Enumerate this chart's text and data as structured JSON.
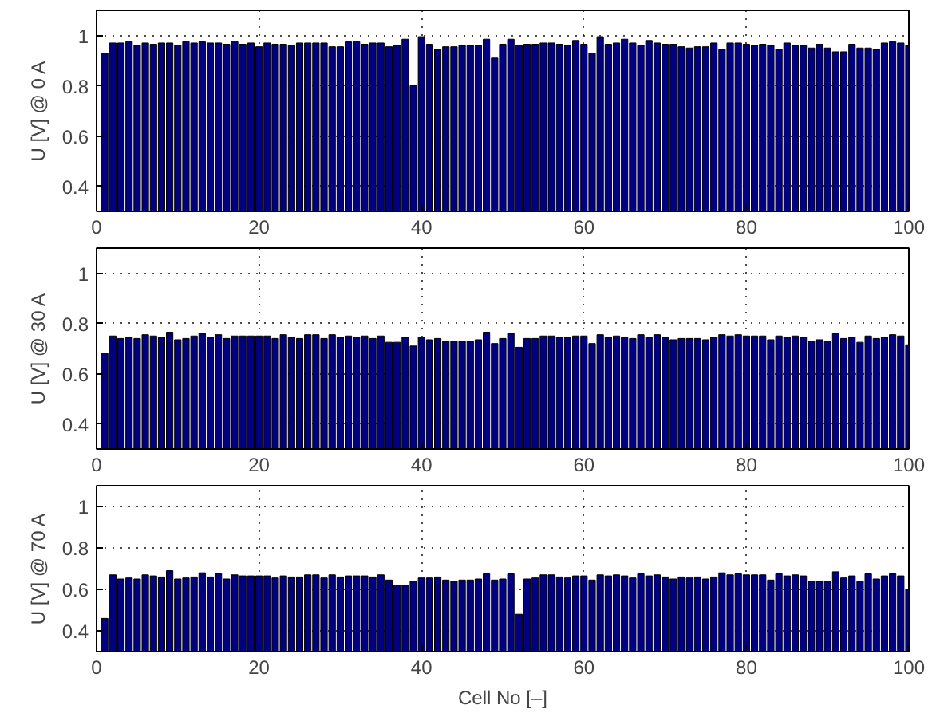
{
  "chart_data": [
    {
      "type": "bar",
      "ylabel": "U [V] @ 0 A",
      "color": "#000080",
      "xlim": [
        0,
        100
      ],
      "xticks": [
        0,
        20,
        40,
        60,
        80,
        100
      ],
      "ylim": [
        0.3,
        1.1
      ],
      "yticks": [
        0.4,
        0.6,
        0.8,
        1
      ],
      "grid": true,
      "x": [
        1,
        2,
        3,
        4,
        5,
        6,
        7,
        8,
        9,
        10,
        11,
        12,
        13,
        14,
        15,
        16,
        17,
        18,
        19,
        20,
        21,
        22,
        23,
        24,
        25,
        26,
        27,
        28,
        29,
        30,
        31,
        32,
        33,
        34,
        35,
        36,
        37,
        38,
        39,
        40,
        41,
        42,
        43,
        44,
        45,
        46,
        47,
        48,
        49,
        50,
        51,
        52,
        53,
        54,
        55,
        56,
        57,
        58,
        59,
        60,
        61,
        62,
        63,
        64,
        65,
        66,
        67,
        68,
        69,
        70,
        71,
        72,
        73,
        74,
        75,
        76,
        77,
        78,
        79,
        80,
        81,
        82,
        83,
        84,
        85,
        86,
        87,
        88,
        89,
        90,
        91,
        92,
        93,
        94,
        95,
        96,
        97,
        98,
        99,
        100
      ],
      "values": [
        0.93,
        0.97,
        0.97,
        0.975,
        0.96,
        0.97,
        0.965,
        0.97,
        0.97,
        0.96,
        0.975,
        0.97,
        0.975,
        0.97,
        0.97,
        0.965,
        0.975,
        0.965,
        0.97,
        0.955,
        0.97,
        0.965,
        0.965,
        0.96,
        0.97,
        0.97,
        0.97,
        0.97,
        0.955,
        0.955,
        0.975,
        0.975,
        0.965,
        0.97,
        0.97,
        0.955,
        0.96,
        0.985,
        0.8,
        0.995,
        0.965,
        0.945,
        0.955,
        0.955,
        0.96,
        0.96,
        0.96,
        0.985,
        0.91,
        0.965,
        0.985,
        0.96,
        0.965,
        0.965,
        0.97,
        0.97,
        0.965,
        0.96,
        0.98,
        0.965,
        0.93,
        0.995,
        0.965,
        0.97,
        0.985,
        0.97,
        0.96,
        0.98,
        0.97,
        0.965,
        0.965,
        0.955,
        0.95,
        0.955,
        0.955,
        0.97,
        0.945,
        0.97,
        0.97,
        0.965,
        0.96,
        0.965,
        0.96,
        0.945,
        0.97,
        0.96,
        0.96,
        0.95,
        0.965,
        0.95,
        0.935,
        0.935,
        0.965,
        0.95,
        0.95,
        0.945,
        0.97,
        0.975,
        0.97,
        0.96
      ]
    },
    {
      "type": "bar",
      "ylabel": "U [V] @ 30 A",
      "color": "#000080",
      "xlim": [
        0,
        100
      ],
      "xticks": [
        0,
        20,
        40,
        60,
        80,
        100
      ],
      "ylim": [
        0.3,
        1.1
      ],
      "yticks": [
        0.4,
        0.6,
        0.8,
        1
      ],
      "grid": true,
      "x": [
        1,
        2,
        3,
        4,
        5,
        6,
        7,
        8,
        9,
        10,
        11,
        12,
        13,
        14,
        15,
        16,
        17,
        18,
        19,
        20,
        21,
        22,
        23,
        24,
        25,
        26,
        27,
        28,
        29,
        30,
        31,
        32,
        33,
        34,
        35,
        36,
        37,
        38,
        39,
        40,
        41,
        42,
        43,
        44,
        45,
        46,
        47,
        48,
        49,
        50,
        51,
        52,
        53,
        54,
        55,
        56,
        57,
        58,
        59,
        60,
        61,
        62,
        63,
        64,
        65,
        66,
        67,
        68,
        69,
        70,
        71,
        72,
        73,
        74,
        75,
        76,
        77,
        78,
        79,
        80,
        81,
        82,
        83,
        84,
        85,
        86,
        87,
        88,
        89,
        90,
        91,
        92,
        93,
        94,
        95,
        96,
        97,
        98,
        99,
        100
      ],
      "values": [
        0.68,
        0.75,
        0.74,
        0.745,
        0.74,
        0.755,
        0.75,
        0.745,
        0.765,
        0.735,
        0.74,
        0.75,
        0.76,
        0.745,
        0.755,
        0.74,
        0.75,
        0.75,
        0.75,
        0.75,
        0.75,
        0.74,
        0.755,
        0.745,
        0.74,
        0.755,
        0.755,
        0.74,
        0.755,
        0.745,
        0.75,
        0.745,
        0.75,
        0.74,
        0.75,
        0.725,
        0.725,
        0.745,
        0.71,
        0.745,
        0.735,
        0.74,
        0.73,
        0.73,
        0.73,
        0.73,
        0.735,
        0.765,
        0.72,
        0.74,
        0.76,
        0.705,
        0.74,
        0.74,
        0.75,
        0.75,
        0.745,
        0.745,
        0.75,
        0.75,
        0.72,
        0.755,
        0.745,
        0.75,
        0.745,
        0.74,
        0.755,
        0.745,
        0.755,
        0.745,
        0.735,
        0.74,
        0.74,
        0.74,
        0.735,
        0.745,
        0.755,
        0.75,
        0.755,
        0.75,
        0.75,
        0.75,
        0.735,
        0.75,
        0.745,
        0.75,
        0.745,
        0.73,
        0.735,
        0.73,
        0.76,
        0.74,
        0.745,
        0.725,
        0.75,
        0.74,
        0.745,
        0.755,
        0.75,
        0.715
      ]
    },
    {
      "type": "bar",
      "xlabel": "Cell No [–]",
      "ylabel": "U [V] @ 70 A",
      "color": "#000080",
      "xlim": [
        0,
        100
      ],
      "xticks": [
        0,
        20,
        40,
        60,
        80,
        100
      ],
      "ylim": [
        0.3,
        1.1
      ],
      "yticks": [
        0.4,
        0.6,
        0.8,
        1
      ],
      "grid": true,
      "x": [
        1,
        2,
        3,
        4,
        5,
        6,
        7,
        8,
        9,
        10,
        11,
        12,
        13,
        14,
        15,
        16,
        17,
        18,
        19,
        20,
        21,
        22,
        23,
        24,
        25,
        26,
        27,
        28,
        29,
        30,
        31,
        32,
        33,
        34,
        35,
        36,
        37,
        38,
        39,
        40,
        41,
        42,
        43,
        44,
        45,
        46,
        47,
        48,
        49,
        50,
        51,
        52,
        53,
        54,
        55,
        56,
        57,
        58,
        59,
        60,
        61,
        62,
        63,
        64,
        65,
        66,
        67,
        68,
        69,
        70,
        71,
        72,
        73,
        74,
        75,
        76,
        77,
        78,
        79,
        80,
        81,
        82,
        83,
        84,
        85,
        86,
        87,
        88,
        89,
        90,
        91,
        92,
        93,
        94,
        95,
        96,
        97,
        98,
        99,
        100
      ],
      "values": [
        0.46,
        0.67,
        0.65,
        0.655,
        0.65,
        0.67,
        0.665,
        0.66,
        0.69,
        0.65,
        0.655,
        0.66,
        0.68,
        0.66,
        0.675,
        0.65,
        0.67,
        0.665,
        0.665,
        0.665,
        0.665,
        0.655,
        0.665,
        0.66,
        0.66,
        0.67,
        0.67,
        0.655,
        0.67,
        0.66,
        0.665,
        0.665,
        0.665,
        0.66,
        0.67,
        0.645,
        0.62,
        0.62,
        0.64,
        0.655,
        0.655,
        0.66,
        0.645,
        0.64,
        0.645,
        0.645,
        0.65,
        0.675,
        0.645,
        0.65,
        0.675,
        0.48,
        0.65,
        0.655,
        0.67,
        0.67,
        0.66,
        0.655,
        0.665,
        0.665,
        0.645,
        0.67,
        0.665,
        0.67,
        0.665,
        0.655,
        0.675,
        0.665,
        0.67,
        0.66,
        0.65,
        0.66,
        0.655,
        0.66,
        0.65,
        0.66,
        0.68,
        0.67,
        0.675,
        0.67,
        0.67,
        0.67,
        0.645,
        0.675,
        0.665,
        0.67,
        0.665,
        0.64,
        0.64,
        0.64,
        0.685,
        0.655,
        0.665,
        0.64,
        0.675,
        0.65,
        0.665,
        0.675,
        0.665,
        0.6
      ]
    }
  ]
}
